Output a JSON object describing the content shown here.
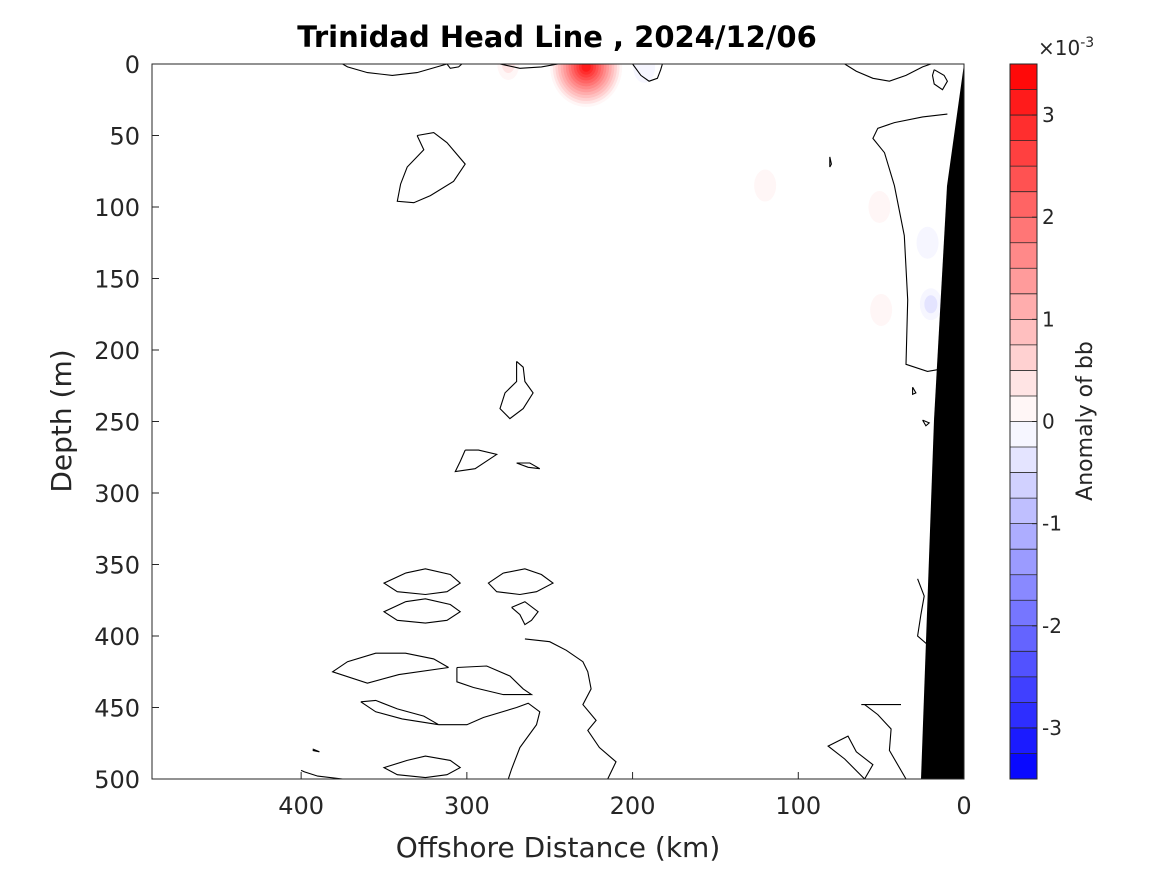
{
  "chart_data": {
    "type": "contour",
    "title": "Trinidad Head Line , 2024/12/06",
    "xlabel": "Offshore Distance (km)",
    "ylabel": "Depth (m)",
    "xlim": [
      490,
      0
    ],
    "ylim": [
      0,
      500
    ],
    "x_reversed": true,
    "y_reversed": true,
    "x_ticks": [
      400,
      300,
      200,
      100,
      0
    ],
    "x_tick_labels": [
      "400",
      "300",
      "200",
      "100",
      "0"
    ],
    "y_ticks": [
      0,
      50,
      100,
      150,
      200,
      250,
      300,
      350,
      400,
      450,
      500
    ],
    "y_tick_labels": [
      "0",
      "50",
      "100",
      "150",
      "200",
      "250",
      "300",
      "350",
      "400",
      "450",
      "500"
    ],
    "colorbar": {
      "label": "Anomaly of bb",
      "exponent_label": "×10",
      "exponent_power": "-3",
      "min": -3.5,
      "max": 3.5,
      "levels": 28,
      "ticks": [
        3,
        2,
        1,
        0,
        -1,
        -2,
        -3
      ],
      "tick_labels": [
        "3",
        "2",
        "1",
        "0",
        "-1",
        "-2",
        "-3"
      ],
      "low_color": "#0000ff",
      "mid_color": "#ffffff",
      "high_color": "#ff0000"
    },
    "anomaly_features": [
      {
        "sign": "positive",
        "x_km": 228,
        "depth_m": 2,
        "peak": 3.3
      },
      {
        "sign": "positive",
        "x_km": 275,
        "depth_m": 0,
        "peak": 0.5
      },
      {
        "sign": "positive",
        "x_km": 120,
        "depth_m": 85,
        "peak": 0.35
      },
      {
        "sign": "positive",
        "x_km": 51,
        "depth_m": 100,
        "peak": 0.35
      },
      {
        "sign": "positive",
        "x_km": 50,
        "depth_m": 172,
        "peak": 0.3
      },
      {
        "sign": "negative",
        "x_km": 193,
        "depth_m": 2,
        "peak": -0.3
      },
      {
        "sign": "negative",
        "x_km": 22,
        "depth_m": 125,
        "peak": -0.3
      },
      {
        "sign": "negative",
        "x_km": 20,
        "depth_m": 168,
        "peak": -0.45
      }
    ],
    "zero_contours": [
      [
        [
          375,
          0
        ],
        [
          372,
          2
        ],
        [
          360,
          6
        ],
        [
          345,
          8
        ],
        [
          330,
          6
        ],
        [
          318,
          2
        ],
        [
          312,
          0
        ]
      ],
      [
        [
          312,
          0
        ],
        [
          310,
          3
        ],
        [
          305,
          2
        ],
        [
          303,
          0
        ]
      ],
      [
        [
          280,
          0
        ],
        [
          268,
          3
        ],
        [
          255,
          2
        ],
        [
          245,
          0
        ]
      ],
      [
        [
          200,
          0
        ],
        [
          195,
          8
        ],
        [
          190,
          12
        ],
        [
          185,
          10
        ],
        [
          183,
          4
        ],
        [
          182,
          0
        ]
      ],
      [
        [
          72,
          0
        ],
        [
          65,
          5
        ],
        [
          55,
          10
        ],
        [
          45,
          12
        ],
        [
          35,
          8
        ],
        [
          25,
          2
        ],
        [
          20,
          0
        ]
      ],
      [
        [
          18,
          4
        ],
        [
          12,
          8
        ],
        [
          10,
          12
        ],
        [
          13,
          18
        ],
        [
          18,
          14
        ],
        [
          19,
          8
        ],
        [
          18,
          4
        ]
      ],
      [
        [
          10,
          35
        ],
        [
          25,
          37
        ],
        [
          42,
          41
        ],
        [
          52,
          45
        ],
        [
          55,
          52
        ],
        [
          48,
          62
        ],
        [
          42,
          85
        ],
        [
          36,
          120
        ],
        [
          34,
          165
        ],
        [
          35,
          210
        ],
        [
          22,
          215
        ],
        [
          12,
          213
        ]
      ],
      [
        [
          330,
          50
        ],
        [
          320,
          48
        ],
        [
          312,
          55
        ],
        [
          301,
          70
        ],
        [
          308,
          82
        ],
        [
          322,
          92
        ],
        [
          332,
          97
        ],
        [
          342,
          96
        ],
        [
          340,
          84
        ],
        [
          336,
          72
        ],
        [
          326,
          60
        ],
        [
          330,
          50
        ]
      ],
      [
        [
          81,
          65
        ],
        [
          80,
          70
        ],
        [
          81,
          72
        ],
        [
          81,
          65
        ]
      ],
      [
        [
          270,
          208
        ],
        [
          266,
          212
        ],
        [
          265,
          222
        ],
        [
          260,
          230
        ],
        [
          266,
          241
        ],
        [
          274,
          248
        ],
        [
          280,
          241
        ],
        [
          277,
          230
        ],
        [
          270,
          222
        ],
        [
          270,
          208
        ]
      ],
      [
        [
          31,
          226
        ],
        [
          29,
          230
        ],
        [
          31,
          231
        ],
        [
          31,
          226
        ]
      ],
      [
        [
          25,
          249
        ],
        [
          21,
          251
        ],
        [
          23,
          253
        ],
        [
          25,
          249
        ]
      ],
      [
        [
          301,
          270
        ],
        [
          293,
          270
        ],
        [
          282,
          273
        ],
        [
          295,
          283
        ],
        [
          307,
          285
        ],
        [
          304,
          278
        ],
        [
          301,
          270
        ]
      ],
      [
        [
          270,
          279
        ],
        [
          263,
          282
        ],
        [
          256,
          283
        ],
        [
          262,
          279
        ],
        [
          270,
          279
        ]
      ],
      [
        [
          337,
          356
        ],
        [
          325,
          353
        ],
        [
          310,
          357
        ],
        [
          304,
          363
        ],
        [
          312,
          369
        ],
        [
          325,
          371
        ],
        [
          342,
          369
        ],
        [
          350,
          363
        ],
        [
          337,
          356
        ]
      ],
      [
        [
          278,
          356
        ],
        [
          265,
          353
        ],
        [
          255,
          357
        ],
        [
          248,
          363
        ],
        [
          258,
          369
        ],
        [
          268,
          371
        ],
        [
          282,
          369
        ],
        [
          287,
          363
        ],
        [
          278,
          356
        ]
      ],
      [
        [
          337,
          376
        ],
        [
          325,
          374
        ],
        [
          310,
          378
        ],
        [
          304,
          383
        ],
        [
          312,
          389
        ],
        [
          325,
          391
        ],
        [
          342,
          389
        ],
        [
          350,
          383
        ],
        [
          337,
          376
        ]
      ],
      [
        [
          273,
          380
        ],
        [
          265,
          376
        ],
        [
          257,
          383
        ],
        [
          261,
          389
        ],
        [
          265,
          392
        ],
        [
          268,
          385
        ],
        [
          273,
          380
        ]
      ],
      [
        [
          311,
          422
        ],
        [
          320,
          416
        ],
        [
          337,
          412
        ],
        [
          355,
          412
        ],
        [
          372,
          418
        ],
        [
          381,
          425
        ],
        [
          360,
          433
        ],
        [
          341,
          427
        ],
        [
          311,
          422
        ]
      ],
      [
        [
          306,
          422
        ],
        [
          288,
          421
        ],
        [
          274,
          428
        ],
        [
          266,
          437
        ],
        [
          261,
          441
        ],
        [
          278,
          441
        ],
        [
          296,
          436
        ],
        [
          306,
          432
        ],
        [
          306,
          422
        ]
      ],
      [
        [
          265,
          402
        ],
        [
          250,
          404
        ],
        [
          240,
          410
        ],
        [
          230,
          418
        ],
        [
          227,
          425
        ],
        [
          225,
          437
        ],
        [
          230,
          448
        ],
        [
          222,
          459
        ],
        [
          227,
          466
        ],
        [
          220,
          478
        ],
        [
          210,
          488
        ],
        [
          215,
          500
        ]
      ],
      [
        [
          364,
          446
        ],
        [
          355,
          445
        ],
        [
          342,
          451
        ],
        [
          326,
          456
        ],
        [
          317,
          462
        ],
        [
          339,
          458
        ],
        [
          355,
          453
        ],
        [
          364,
          446
        ]
      ],
      [
        [
          317,
          462
        ],
        [
          300,
          462
        ],
        [
          290,
          457
        ],
        [
          270,
          450
        ],
        [
          263,
          447
        ],
        [
          256,
          453
        ],
        [
          258,
          462
        ],
        [
          268,
          478
        ],
        [
          273,
          493
        ],
        [
          275,
          500
        ]
      ],
      [
        [
          393,
          480
        ],
        [
          389,
          481
        ],
        [
          393,
          479
        ]
      ],
      [
        [
          336,
          487
        ],
        [
          325,
          484
        ],
        [
          310,
          487
        ],
        [
          304,
          492
        ],
        [
          312,
          497
        ],
        [
          325,
          499
        ],
        [
          342,
          497
        ],
        [
          350,
          492
        ],
        [
          336,
          487
        ]
      ],
      [
        [
          375,
          500
        ],
        [
          390,
          498
        ],
        [
          398,
          495
        ],
        [
          400,
          494
        ]
      ],
      [
        [
          60,
          500
        ],
        [
          55,
          490
        ],
        [
          65,
          481
        ],
        [
          70,
          470
        ],
        [
          82,
          477
        ],
        [
          72,
          486
        ],
        [
          60,
          500
        ]
      ],
      [
        [
          60,
          448
        ],
        [
          52,
          455
        ],
        [
          44,
          465
        ],
        [
          45,
          480
        ],
        [
          35,
          500
        ]
      ],
      [
        [
          38,
          448
        ],
        [
          50,
          448
        ],
        [
          62,
          448
        ]
      ],
      [
        [
          28,
          360
        ],
        [
          24,
          372
        ],
        [
          26,
          385
        ],
        [
          28,
          400
        ],
        [
          16,
          412
        ],
        [
          13,
          420
        ]
      ]
    ]
  }
}
